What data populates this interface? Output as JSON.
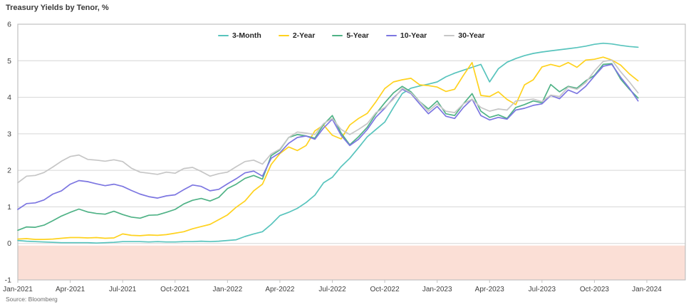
{
  "title": "Treasury Yields by Tenor, %",
  "source": "Source: Bloomberg",
  "colors": {
    "background": "#ffffff",
    "grid": "#d6d6d6",
    "plot_border": "#c0c0c0",
    "tick_text": "#3f3f3f",
    "title_text": "#3a3a3a",
    "legend_text": "#262626",
    "negative_band": "#fbdfd6"
  },
  "chart_data": {
    "type": "line",
    "title": "Treasury Yields by Tenor, %",
    "xlabel": "",
    "ylabel": "",
    "ylim": [
      -1,
      6
    ],
    "y_ticks": [
      -1,
      0,
      1,
      2,
      3,
      4,
      5,
      6
    ],
    "x_tick_labels": [
      "Jan-2021",
      "Apr-2021",
      "Jul-2021",
      "Oct-2021",
      "Jan-2022",
      "Apr-2022",
      "Jul-2022",
      "Oct-2022",
      "Jan-2023",
      "Apr-2023",
      "Jul-2023",
      "Oct-2023",
      "Jan-2024"
    ],
    "x_start": "Jan-2021",
    "x_step_months": 0.5,
    "grid": "horizontal",
    "legend_position": "top-center",
    "negative_band": {
      "from": 0,
      "to": -1
    },
    "series": [
      {
        "name": "3-Month",
        "color": "#58c4bd",
        "values": [
          0.08,
          0.06,
          0.05,
          0.04,
          0.03,
          0.02,
          0.02,
          0.02,
          0.02,
          0.01,
          0.02,
          0.03,
          0.05,
          0.05,
          0.05,
          0.04,
          0.05,
          0.04,
          0.04,
          0.05,
          0.05,
          0.06,
          0.05,
          0.06,
          0.08,
          0.1,
          0.19,
          0.26,
          0.32,
          0.52,
          0.76,
          0.85,
          0.96,
          1.12,
          1.32,
          1.66,
          1.81,
          2.1,
          2.33,
          2.62,
          2.92,
          3.12,
          3.32,
          3.72,
          4.1,
          4.25,
          4.31,
          4.36,
          4.42,
          4.56,
          4.66,
          4.74,
          4.82,
          4.9,
          4.42,
          4.78,
          4.96,
          5.06,
          5.14,
          5.2,
          5.24,
          5.27,
          5.3,
          5.33,
          5.36,
          5.4,
          5.45,
          5.48,
          5.46,
          5.42,
          5.39,
          5.37
        ]
      },
      {
        "name": "2-Year",
        "color": "#ffd21e",
        "values": [
          0.12,
          0.13,
          0.11,
          0.11,
          0.12,
          0.14,
          0.16,
          0.16,
          0.15,
          0.16,
          0.14,
          0.15,
          0.26,
          0.22,
          0.21,
          0.23,
          0.22,
          0.24,
          0.28,
          0.32,
          0.4,
          0.46,
          0.52,
          0.65,
          0.78,
          0.99,
          1.16,
          1.44,
          1.62,
          2.16,
          2.46,
          2.64,
          2.54,
          2.68,
          3.08,
          3.24,
          2.96,
          2.86,
          3.24,
          3.42,
          3.56,
          3.88,
          4.24,
          4.42,
          4.48,
          4.52,
          4.34,
          4.32,
          4.28,
          4.16,
          4.22,
          4.6,
          4.95,
          4.05,
          4.02,
          4.15,
          3.94,
          3.8,
          4.34,
          4.48,
          4.83,
          4.9,
          4.84,
          4.95,
          4.82,
          5.02,
          5.04,
          5.1,
          5.02,
          4.88,
          4.64,
          4.45
        ]
      },
      {
        "name": "5-Year",
        "color": "#4fb286",
        "values": [
          0.36,
          0.45,
          0.44,
          0.5,
          0.62,
          0.75,
          0.85,
          0.94,
          0.86,
          0.82,
          0.8,
          0.88,
          0.79,
          0.72,
          0.69,
          0.77,
          0.78,
          0.85,
          0.93,
          1.08,
          1.18,
          1.23,
          1.16,
          1.26,
          1.5,
          1.62,
          1.78,
          1.86,
          1.76,
          2.4,
          2.56,
          2.9,
          2.98,
          2.94,
          2.88,
          3.25,
          3.5,
          3.02,
          2.7,
          2.92,
          3.18,
          3.55,
          3.85,
          4.12,
          4.3,
          4.15,
          3.88,
          3.68,
          3.9,
          3.55,
          3.5,
          3.82,
          4.1,
          3.62,
          3.45,
          3.52,
          3.42,
          3.72,
          3.8,
          3.9,
          3.85,
          4.35,
          4.15,
          4.3,
          4.25,
          4.45,
          4.6,
          4.9,
          4.92,
          4.5,
          4.22,
          3.98
        ]
      },
      {
        "name": "10-Year",
        "color": "#7c76e1",
        "values": [
          0.93,
          1.09,
          1.11,
          1.19,
          1.35,
          1.44,
          1.62,
          1.72,
          1.69,
          1.63,
          1.58,
          1.62,
          1.56,
          1.45,
          1.35,
          1.28,
          1.24,
          1.3,
          1.33,
          1.47,
          1.6,
          1.56,
          1.44,
          1.48,
          1.63,
          1.77,
          1.93,
          1.98,
          1.84,
          2.33,
          2.48,
          2.74,
          2.9,
          2.94,
          2.85,
          3.16,
          3.4,
          2.96,
          2.68,
          2.85,
          3.12,
          3.46,
          3.7,
          3.98,
          4.22,
          4.1,
          3.82,
          3.55,
          3.75,
          3.48,
          3.42,
          3.72,
          3.95,
          3.5,
          3.38,
          3.45,
          3.4,
          3.65,
          3.7,
          3.78,
          3.82,
          4.05,
          3.96,
          4.2,
          4.1,
          4.3,
          4.58,
          4.85,
          4.9,
          4.55,
          4.25,
          3.9
        ]
      },
      {
        "name": "30-Year",
        "color": "#c6c6c6",
        "values": [
          1.66,
          1.84,
          1.86,
          1.94,
          2.09,
          2.25,
          2.38,
          2.42,
          2.3,
          2.28,
          2.25,
          2.29,
          2.24,
          2.06,
          1.95,
          1.92,
          1.89,
          1.95,
          1.92,
          2.05,
          2.08,
          1.97,
          1.84,
          1.91,
          1.95,
          2.1,
          2.24,
          2.28,
          2.17,
          2.45,
          2.58,
          2.9,
          3.05,
          3.02,
          2.98,
          3.28,
          3.42,
          3.12,
          2.98,
          3.12,
          3.28,
          3.58,
          3.72,
          3.95,
          4.25,
          4.12,
          3.88,
          3.62,
          3.82,
          3.62,
          3.58,
          3.82,
          3.95,
          3.72,
          3.62,
          3.68,
          3.65,
          3.9,
          3.92,
          3.95,
          3.88,
          4.06,
          4.02,
          4.28,
          4.22,
          4.4,
          4.72,
          4.98,
          5.02,
          4.7,
          4.42,
          4.12
        ]
      }
    ]
  }
}
